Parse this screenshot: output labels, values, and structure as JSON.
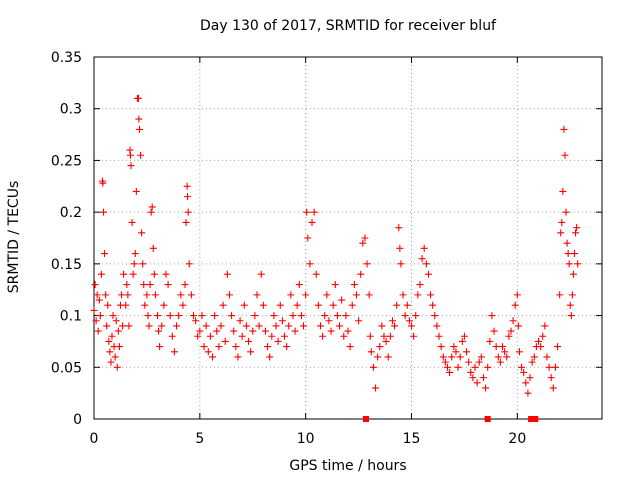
{
  "chart_data": {
    "type": "scatter",
    "title": "Day 130 of 2017, SRMTID for receiver bluf",
    "xlabel": "GPS time / hours",
    "ylabel": "SRMTID / TECUs",
    "xlim": [
      0,
      24
    ],
    "ylim": [
      0,
      0.35
    ],
    "xticks": [
      0,
      5,
      10,
      15,
      20
    ],
    "xtick_labels": [
      "0",
      "5",
      "10",
      "15",
      "20"
    ],
    "yticks": [
      0,
      0.05,
      0.1,
      0.15,
      0.2,
      0.25,
      0.3,
      0.35
    ],
    "ytick_labels": [
      "0",
      "0.05",
      "0.1",
      "0.15",
      "0.2",
      "0.25",
      "0.3",
      "0.35"
    ],
    "grid": true,
    "marker": "+",
    "series": [
      {
        "name": "SRMTID",
        "color": "#ff0000",
        "points": [
          [
            0.0,
            0.105
          ],
          [
            0.05,
            0.13
          ],
          [
            0.1,
            0.095
          ],
          [
            0.15,
            0.12
          ],
          [
            0.2,
            0.085
          ],
          [
            0.25,
            0.115
          ],
          [
            0.3,
            0.1
          ],
          [
            0.35,
            0.14
          ],
          [
            0.4,
            0.23
          ],
          [
            0.42,
            0.228
          ],
          [
            0.45,
            0.2
          ],
          [
            0.5,
            0.16
          ],
          [
            0.55,
            0.12
          ],
          [
            0.6,
            0.09
          ],
          [
            0.65,
            0.11
          ],
          [
            0.7,
            0.075
          ],
          [
            0.75,
            0.065
          ],
          [
            0.8,
            0.055
          ],
          [
            0.85,
            0.08
          ],
          [
            0.9,
            0.1
          ],
          [
            0.95,
            0.07
          ],
          [
            1.0,
            0.06
          ],
          [
            1.05,
            0.095
          ],
          [
            1.1,
            0.05
          ],
          [
            1.15,
            0.085
          ],
          [
            1.2,
            0.07
          ],
          [
            1.25,
            0.11
          ],
          [
            1.3,
            0.12
          ],
          [
            1.35,
            0.09
          ],
          [
            1.4,
            0.14
          ],
          [
            1.5,
            0.11
          ],
          [
            1.55,
            0.13
          ],
          [
            1.6,
            0.12
          ],
          [
            1.65,
            0.09
          ],
          [
            1.7,
            0.26
          ],
          [
            1.72,
            0.255
          ],
          [
            1.75,
            0.245
          ],
          [
            1.8,
            0.19
          ],
          [
            1.85,
            0.14
          ],
          [
            1.9,
            0.15
          ],
          [
            1.95,
            0.16
          ],
          [
            2.0,
            0.22
          ],
          [
            2.05,
            0.31
          ],
          [
            2.1,
            0.31
          ],
          [
            2.12,
            0.29
          ],
          [
            2.15,
            0.28
          ],
          [
            2.2,
            0.255
          ],
          [
            2.25,
            0.18
          ],
          [
            2.3,
            0.15
          ],
          [
            2.35,
            0.13
          ],
          [
            2.4,
            0.11
          ],
          [
            2.5,
            0.12
          ],
          [
            2.55,
            0.1
          ],
          [
            2.6,
            0.09
          ],
          [
            2.65,
            0.13
          ],
          [
            2.7,
            0.2
          ],
          [
            2.75,
            0.205
          ],
          [
            2.8,
            0.165
          ],
          [
            2.85,
            0.14
          ],
          [
            2.9,
            0.12
          ],
          [
            3.0,
            0.1
          ],
          [
            3.05,
            0.085
          ],
          [
            3.1,
            0.07
          ],
          [
            3.2,
            0.09
          ],
          [
            3.3,
            0.11
          ],
          [
            3.4,
            0.14
          ],
          [
            3.5,
            0.13
          ],
          [
            3.6,
            0.1
          ],
          [
            3.7,
            0.08
          ],
          [
            3.8,
            0.065
          ],
          [
            3.9,
            0.09
          ],
          [
            4.0,
            0.1
          ],
          [
            4.1,
            0.12
          ],
          [
            4.2,
            0.11
          ],
          [
            4.3,
            0.13
          ],
          [
            4.35,
            0.19
          ],
          [
            4.4,
            0.225
          ],
          [
            4.42,
            0.215
          ],
          [
            4.45,
            0.2
          ],
          [
            4.5,
            0.15
          ],
          [
            4.6,
            0.12
          ],
          [
            4.7,
            0.1
          ],
          [
            4.8,
            0.095
          ],
          [
            4.9,
            0.08
          ],
          [
            5.0,
            0.085
          ],
          [
            5.1,
            0.1
          ],
          [
            5.2,
            0.07
          ],
          [
            5.3,
            0.09
          ],
          [
            5.4,
            0.065
          ],
          [
            5.5,
            0.08
          ],
          [
            5.6,
            0.06
          ],
          [
            5.7,
            0.1
          ],
          [
            5.8,
            0.085
          ],
          [
            5.9,
            0.07
          ],
          [
            6.0,
            0.09
          ],
          [
            6.1,
            0.11
          ],
          [
            6.2,
            0.075
          ],
          [
            6.3,
            0.14
          ],
          [
            6.4,
            0.12
          ],
          [
            6.5,
            0.1
          ],
          [
            6.6,
            0.085
          ],
          [
            6.7,
            0.07
          ],
          [
            6.8,
            0.06
          ],
          [
            6.9,
            0.095
          ],
          [
            7.0,
            0.08
          ],
          [
            7.1,
            0.11
          ],
          [
            7.2,
            0.09
          ],
          [
            7.3,
            0.075
          ],
          [
            7.4,
            0.065
          ],
          [
            7.5,
            0.085
          ],
          [
            7.6,
            0.1
          ],
          [
            7.7,
            0.12
          ],
          [
            7.8,
            0.09
          ],
          [
            7.9,
            0.14
          ],
          [
            8.0,
            0.11
          ],
          [
            8.1,
            0.085
          ],
          [
            8.2,
            0.07
          ],
          [
            8.3,
            0.06
          ],
          [
            8.4,
            0.08
          ],
          [
            8.5,
            0.1
          ],
          [
            8.6,
            0.09
          ],
          [
            8.7,
            0.075
          ],
          [
            8.8,
            0.11
          ],
          [
            8.9,
            0.095
          ],
          [
            9.0,
            0.08
          ],
          [
            9.1,
            0.07
          ],
          [
            9.2,
            0.09
          ],
          [
            9.3,
            0.12
          ],
          [
            9.4,
            0.1
          ],
          [
            9.5,
            0.085
          ],
          [
            9.6,
            0.11
          ],
          [
            9.7,
            0.13
          ],
          [
            9.8,
            0.1
          ],
          [
            9.9,
            0.09
          ],
          [
            10.0,
            0.12
          ],
          [
            10.05,
            0.2
          ],
          [
            10.1,
            0.175
          ],
          [
            10.2,
            0.15
          ],
          [
            10.3,
            0.19
          ],
          [
            10.4,
            0.2
          ],
          [
            10.5,
            0.14
          ],
          [
            10.6,
            0.11
          ],
          [
            10.7,
            0.09
          ],
          [
            10.8,
            0.08
          ],
          [
            10.9,
            0.1
          ],
          [
            11.0,
            0.12
          ],
          [
            11.1,
            0.095
          ],
          [
            11.2,
            0.085
          ],
          [
            11.3,
            0.11
          ],
          [
            11.4,
            0.13
          ],
          [
            11.5,
            0.1
          ],
          [
            11.6,
            0.09
          ],
          [
            11.7,
            0.115
          ],
          [
            11.8,
            0.08
          ],
          [
            11.9,
            0.1
          ],
          [
            12.0,
            0.085
          ],
          [
            12.1,
            0.07
          ],
          [
            12.2,
            0.11
          ],
          [
            12.3,
            0.13
          ],
          [
            12.4,
            0.12
          ],
          [
            12.5,
            0.095
          ],
          [
            12.6,
            0.14
          ],
          [
            12.7,
            0.17
          ],
          [
            12.8,
            0.175
          ],
          [
            12.9,
            0.15
          ],
          [
            13.0,
            0.12
          ],
          [
            13.05,
            0.08
          ],
          [
            13.1,
            0.065
          ],
          [
            13.2,
            0.05
          ],
          [
            13.3,
            0.03
          ],
          [
            13.4,
            0.06
          ],
          [
            13.5,
            0.07
          ],
          [
            13.6,
            0.09
          ],
          [
            13.7,
            0.08
          ],
          [
            13.8,
            0.075
          ],
          [
            13.9,
            0.06
          ],
          [
            14.0,
            0.08
          ],
          [
            14.1,
            0.095
          ],
          [
            14.2,
            0.09
          ],
          [
            14.3,
            0.11
          ],
          [
            14.4,
            0.185
          ],
          [
            14.45,
            0.165
          ],
          [
            14.5,
            0.15
          ],
          [
            14.6,
            0.12
          ],
          [
            14.7,
            0.1
          ],
          [
            14.8,
            0.11
          ],
          [
            14.9,
            0.095
          ],
          [
            15.0,
            0.09
          ],
          [
            15.1,
            0.08
          ],
          [
            15.2,
            0.1
          ],
          [
            15.3,
            0.12
          ],
          [
            15.4,
            0.13
          ],
          [
            15.5,
            0.155
          ],
          [
            15.6,
            0.165
          ],
          [
            15.7,
            0.15
          ],
          [
            15.8,
            0.14
          ],
          [
            15.9,
            0.12
          ],
          [
            16.0,
            0.11
          ],
          [
            16.1,
            0.1
          ],
          [
            16.2,
            0.09
          ],
          [
            16.3,
            0.08
          ],
          [
            16.4,
            0.07
          ],
          [
            16.5,
            0.06
          ],
          [
            16.6,
            0.055
          ],
          [
            16.7,
            0.05
          ],
          [
            16.8,
            0.045
          ],
          [
            16.9,
            0.06
          ],
          [
            17.0,
            0.07
          ],
          [
            17.1,
            0.065
          ],
          [
            17.2,
            0.05
          ],
          [
            17.3,
            0.06
          ],
          [
            17.4,
            0.075
          ],
          [
            17.5,
            0.08
          ],
          [
            17.6,
            0.065
          ],
          [
            17.7,
            0.055
          ],
          [
            17.8,
            0.045
          ],
          [
            17.9,
            0.04
          ],
          [
            18.0,
            0.05
          ],
          [
            18.1,
            0.035
          ],
          [
            18.2,
            0.055
          ],
          [
            18.3,
            0.06
          ],
          [
            18.4,
            0.04
          ],
          [
            18.5,
            0.03
          ],
          [
            18.6,
            0.05
          ],
          [
            18.7,
            0.075
          ],
          [
            18.8,
            0.1
          ],
          [
            18.9,
            0.085
          ],
          [
            19.0,
            0.07
          ],
          [
            19.1,
            0.06
          ],
          [
            19.2,
            0.055
          ],
          [
            19.3,
            0.07
          ],
          [
            19.4,
            0.065
          ],
          [
            19.5,
            0.06
          ],
          [
            19.6,
            0.08
          ],
          [
            19.7,
            0.085
          ],
          [
            19.8,
            0.095
          ],
          [
            19.9,
            0.11
          ],
          [
            20.0,
            0.12
          ],
          [
            20.05,
            0.09
          ],
          [
            20.1,
            0.065
          ],
          [
            20.2,
            0.05
          ],
          [
            20.3,
            0.045
          ],
          [
            20.4,
            0.035
          ],
          [
            20.5,
            0.025
          ],
          [
            20.6,
            0.04
          ],
          [
            20.7,
            0.055
          ],
          [
            20.8,
            0.06
          ],
          [
            20.9,
            0.07
          ],
          [
            21.0,
            0.075
          ],
          [
            21.1,
            0.07
          ],
          [
            21.2,
            0.08
          ],
          [
            21.3,
            0.09
          ],
          [
            21.4,
            0.06
          ],
          [
            21.5,
            0.05
          ],
          [
            21.6,
            0.04
          ],
          [
            21.7,
            0.03
          ],
          [
            21.8,
            0.05
          ],
          [
            21.9,
            0.07
          ],
          [
            22.0,
            0.12
          ],
          [
            22.05,
            0.18
          ],
          [
            22.1,
            0.19
          ],
          [
            22.15,
            0.22
          ],
          [
            22.2,
            0.28
          ],
          [
            22.25,
            0.255
          ],
          [
            22.3,
            0.2
          ],
          [
            22.35,
            0.17
          ],
          [
            22.4,
            0.16
          ],
          [
            22.45,
            0.15
          ],
          [
            22.5,
            0.11
          ],
          [
            22.55,
            0.1
          ],
          [
            22.6,
            0.12
          ],
          [
            22.65,
            0.14
          ],
          [
            22.7,
            0.16
          ],
          [
            22.75,
            0.18
          ],
          [
            22.8,
            0.185
          ],
          [
            22.85,
            0.15
          ]
        ]
      },
      {
        "name": "zero-level markers",
        "color": "#ff0000",
        "marker": "square",
        "points": [
          [
            12.85,
            0.0
          ],
          [
            18.6,
            0.0
          ],
          [
            20.65,
            0.0
          ],
          [
            20.75,
            0.0
          ],
          [
            20.85,
            0.0
          ]
        ]
      }
    ]
  }
}
